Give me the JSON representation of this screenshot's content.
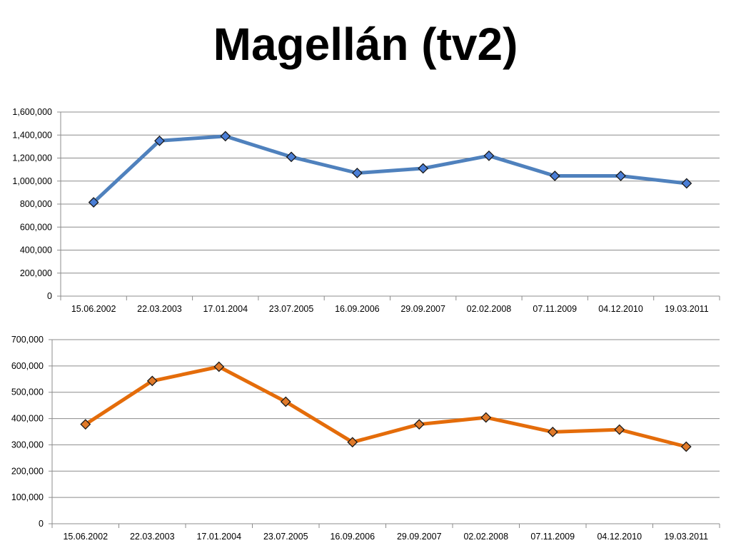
{
  "title": "Magellán (tv2)",
  "chart_data": [
    {
      "type": "line",
      "categories": [
        "15.06.2002",
        "22.03.2003",
        "17.01.2004",
        "23.07.2005",
        "16.09.2006",
        "29.09.2007",
        "02.02.2008",
        "07.11.2009",
        "04.12.2010",
        "19.03.2011"
      ],
      "series": [
        {
          "values": [
            815000,
            1350000,
            1390000,
            1210000,
            1070000,
            1110000,
            1220000,
            1045000,
            1045000,
            980000
          ],
          "color": "#4f81bd",
          "marker_color": "#4a7ed6"
        }
      ],
      "ylim": [
        0,
        1600000
      ],
      "yticks": [
        0,
        200000,
        400000,
        600000,
        800000,
        1000000,
        1200000,
        1400000,
        1600000
      ],
      "ytick_labels": [
        "0",
        "200,000",
        "400,000",
        "600,000",
        "800,000",
        "1,000,000",
        "1,200,000",
        "1,400,000",
        "1,600,000"
      ],
      "grid": true,
      "legend": "none"
    },
    {
      "type": "line",
      "categories": [
        "15.06.2002",
        "22.03.2003",
        "17.01.2004",
        "23.07.2005",
        "16.09.2006",
        "29.09.2007",
        "02.02.2008",
        "07.11.2009",
        "04.12.2010",
        "19.03.2011"
      ],
      "series": [
        {
          "values": [
            378000,
            543000,
            597000,
            464000,
            310000,
            378000,
            404000,
            349000,
            358000,
            293000
          ],
          "color": "#e46c0a",
          "marker_color": "#e07a2a"
        }
      ],
      "ylim": [
        0,
        700000
      ],
      "yticks": [
        0,
        100000,
        200000,
        300000,
        400000,
        500000,
        600000,
        700000
      ],
      "ytick_labels": [
        "0",
        "100,000",
        "200,000",
        "300,000",
        "400,000",
        "500,000",
        "600,000",
        "700,000"
      ],
      "grid": true,
      "legend": "none"
    }
  ]
}
